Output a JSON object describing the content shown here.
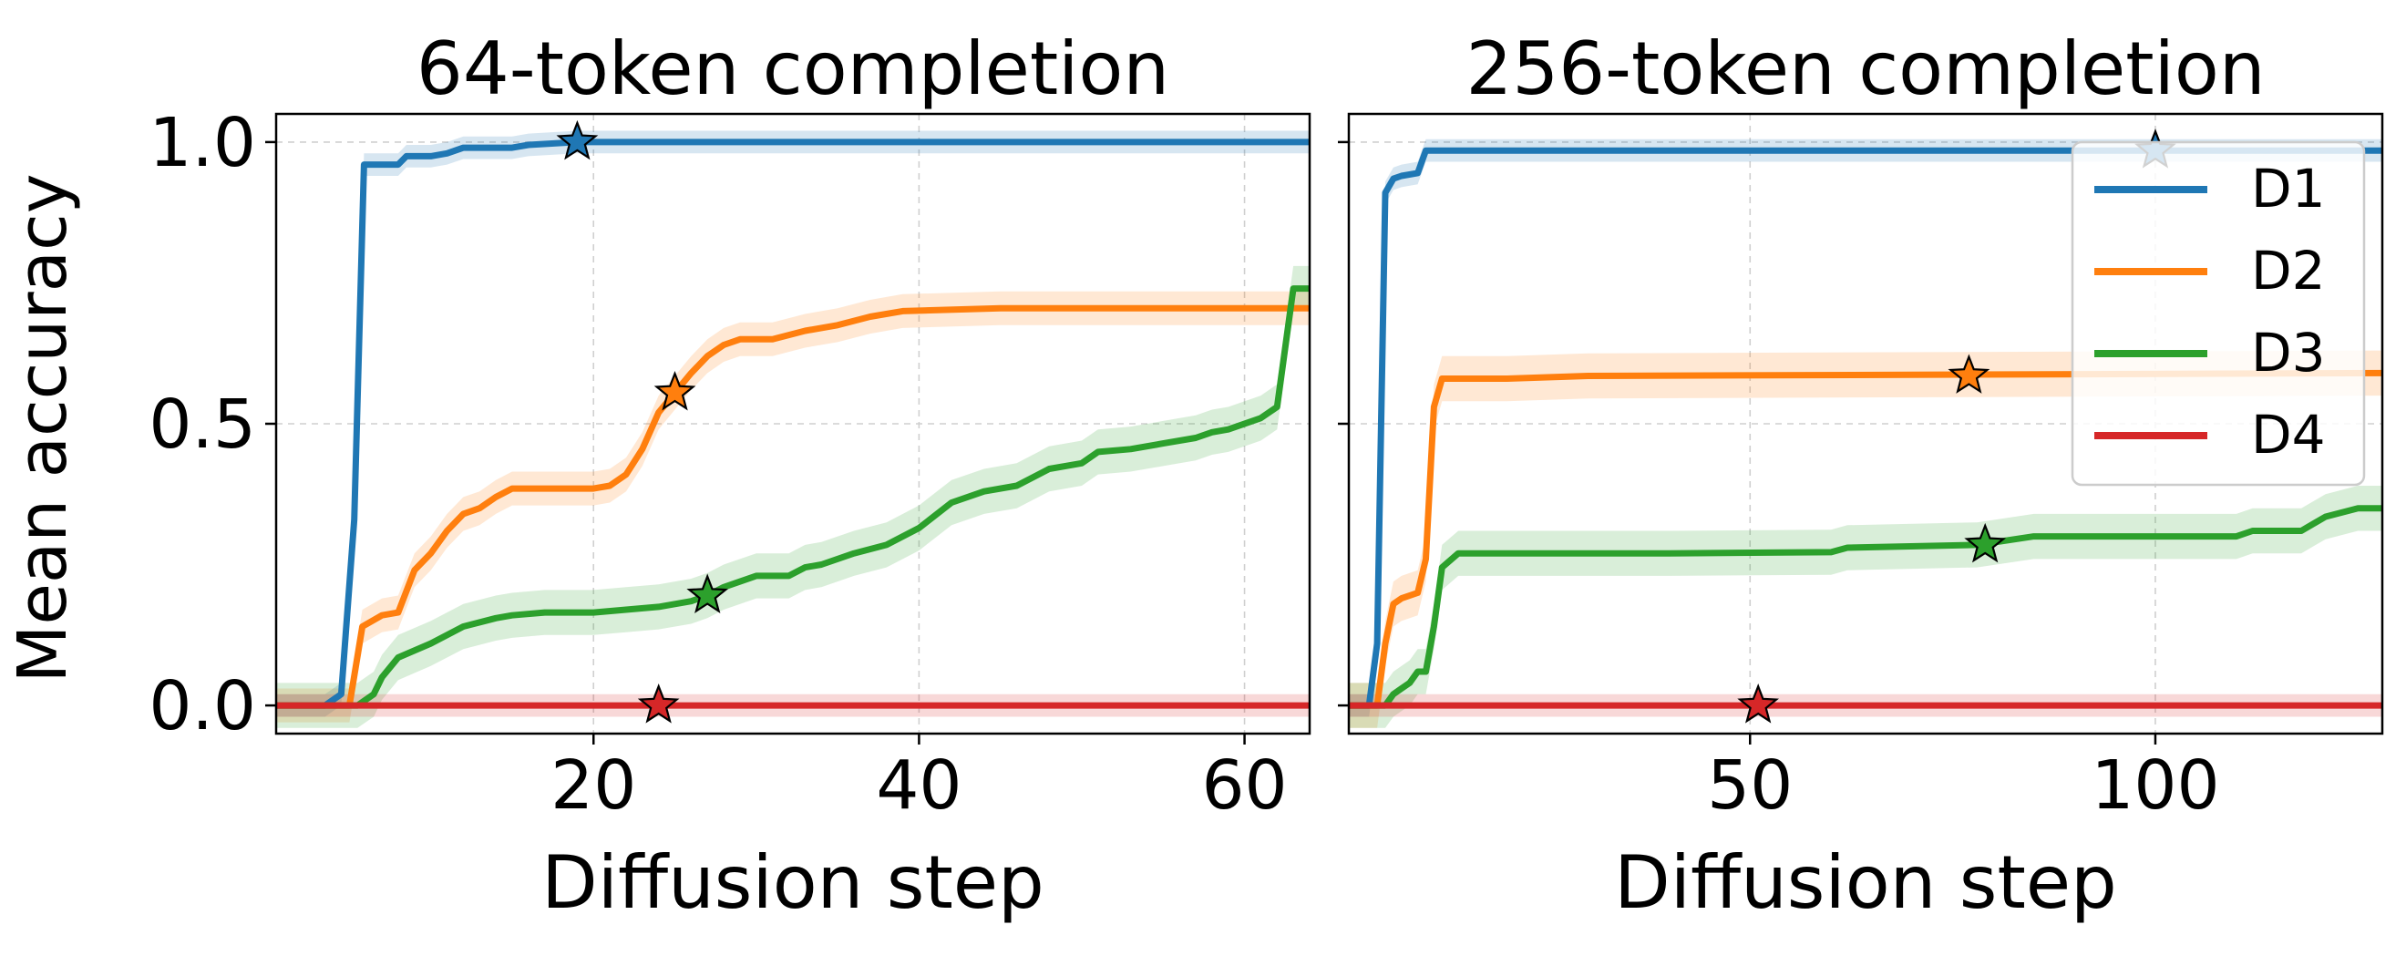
{
  "figure": {
    "ylabel": "Mean accuracy"
  },
  "legend": {
    "placement": "upper-right (right panel)",
    "entries": [
      {
        "label": "D1",
        "color": "#1f77b4"
      },
      {
        "label": "D2",
        "color": "#ff7f0e"
      },
      {
        "label": "D3",
        "color": "#2ca02c"
      },
      {
        "label": "D4",
        "color": "#d62728"
      }
    ]
  },
  "chart_data": [
    {
      "type": "line",
      "title": "64-token completion",
      "xlabel": "Diffusion step",
      "ylabel": "Mean accuracy",
      "xlim": [
        0.5,
        64
      ],
      "ylim": [
        -0.05,
        1.05
      ],
      "xticks": [
        20,
        40,
        60
      ],
      "yticks": [
        0.0,
        0.5,
        1.0
      ],
      "ytick_labels": [
        "0.0",
        "0.5",
        "1.0"
      ],
      "grid": true,
      "series": [
        {
          "name": "D1",
          "color": "#1f77b4",
          "band": 0.02,
          "points": [
            [
              0.5,
              0
            ],
            [
              3.5,
              0
            ],
            [
              4.5,
              0.02
            ],
            [
              5.3,
              0.33
            ],
            [
              5.9,
              0.96
            ],
            [
              8,
              0.96
            ],
            [
              8.5,
              0.975
            ],
            [
              10,
              0.975
            ],
            [
              11,
              0.98
            ],
            [
              12,
              0.99
            ],
            [
              15,
              0.99
            ],
            [
              16,
              0.995
            ],
            [
              19,
              1
            ],
            [
              64,
              1
            ]
          ],
          "star": [
            19,
            1.0
          ]
        },
        {
          "name": "D2",
          "color": "#ff7f0e",
          "band": 0.03,
          "points": [
            [
              0.5,
              0
            ],
            [
              5,
              0
            ],
            [
              5.8,
              0.14
            ],
            [
              7,
              0.16
            ],
            [
              8,
              0.165
            ],
            [
              9,
              0.24
            ],
            [
              10,
              0.27
            ],
            [
              11,
              0.31
            ],
            [
              12,
              0.34
            ],
            [
              13,
              0.35
            ],
            [
              14,
              0.37
            ],
            [
              15,
              0.385
            ],
            [
              20,
              0.385
            ],
            [
              21,
              0.39
            ],
            [
              22,
              0.41
            ],
            [
              23,
              0.455
            ],
            [
              24,
              0.52
            ],
            [
              25,
              0.555
            ],
            [
              26,
              0.59
            ],
            [
              27,
              0.62
            ],
            [
              28,
              0.64
            ],
            [
              29,
              0.65
            ],
            [
              31,
              0.65
            ],
            [
              33,
              0.665
            ],
            [
              35,
              0.675
            ],
            [
              37,
              0.69
            ],
            [
              39,
              0.7
            ],
            [
              45,
              0.705
            ],
            [
              64,
              0.705
            ]
          ],
          "star": [
            25,
            0.555
          ]
        },
        {
          "name": "D3",
          "color": "#2ca02c",
          "band": 0.04,
          "points": [
            [
              0.5,
              0
            ],
            [
              5.5,
              0
            ],
            [
              6.5,
              0.02
            ],
            [
              7,
              0.05
            ],
            [
              8,
              0.085
            ],
            [
              10,
              0.11
            ],
            [
              12,
              0.14
            ],
            [
              14,
              0.155
            ],
            [
              15,
              0.16
            ],
            [
              17,
              0.165
            ],
            [
              20,
              0.165
            ],
            [
              22,
              0.17
            ],
            [
              24,
              0.175
            ],
            [
              26,
              0.185
            ],
            [
              27,
              0.195
            ],
            [
              28,
              0.21
            ],
            [
              30,
              0.23
            ],
            [
              32,
              0.23
            ],
            [
              33,
              0.245
            ],
            [
              34,
              0.25
            ],
            [
              36,
              0.27
            ],
            [
              38,
              0.285
            ],
            [
              40,
              0.315
            ],
            [
              42,
              0.36
            ],
            [
              44,
              0.38
            ],
            [
              46,
              0.39
            ],
            [
              48,
              0.42
            ],
            [
              50,
              0.43
            ],
            [
              51,
              0.45
            ],
            [
              53,
              0.455
            ],
            [
              55,
              0.465
            ],
            [
              57,
              0.475
            ],
            [
              58,
              0.485
            ],
            [
              59,
              0.49
            ],
            [
              61,
              0.51
            ],
            [
              62,
              0.53
            ],
            [
              63,
              0.74
            ],
            [
              64,
              0.74
            ]
          ],
          "star": [
            27,
            0.195
          ]
        },
        {
          "name": "D4",
          "color": "#d62728",
          "band": 0.02,
          "points": [
            [
              0.5,
              0
            ],
            [
              64,
              0
            ]
          ],
          "star": [
            24,
            0.0
          ]
        }
      ]
    },
    {
      "type": "line",
      "title": "256-token completion",
      "xlabel": "Diffusion step",
      "ylabel": "",
      "xlim": [
        0.5,
        128
      ],
      "ylim": [
        -0.05,
        1.05
      ],
      "xticks": [
        50,
        100
      ],
      "yticks": [
        0.0,
        0.5,
        1.0
      ],
      "ytick_labels": [
        "",
        "",
        ""
      ],
      "grid": true,
      "series": [
        {
          "name": "D1",
          "color": "#1f77b4",
          "band": 0.02,
          "points": [
            [
              0.5,
              0
            ],
            [
              3,
              0
            ],
            [
              4,
              0.11
            ],
            [
              5,
              0.91
            ],
            [
              6,
              0.935
            ],
            [
              7,
              0.94
            ],
            [
              9,
              0.945
            ],
            [
              10,
              0.985
            ],
            [
              128,
              0.985
            ]
          ],
          "star": [
            100,
            0.985
          ]
        },
        {
          "name": "D2",
          "color": "#ff7f0e",
          "band": 0.04,
          "points": [
            [
              0.5,
              0
            ],
            [
              4,
              0
            ],
            [
              5,
              0.11
            ],
            [
              6,
              0.18
            ],
            [
              7,
              0.19
            ],
            [
              9,
              0.2
            ],
            [
              10,
              0.26
            ],
            [
              11,
              0.53
            ],
            [
              12,
              0.58
            ],
            [
              20,
              0.58
            ],
            [
              30,
              0.585
            ],
            [
              128,
              0.59
            ]
          ],
          "star": [
            77,
            0.585
          ]
        },
        {
          "name": "D3",
          "color": "#2ca02c",
          "band": 0.04,
          "points": [
            [
              0.5,
              0
            ],
            [
              5,
              0
            ],
            [
              6,
              0.02
            ],
            [
              7,
              0.03
            ],
            [
              8,
              0.04
            ],
            [
              9,
              0.06
            ],
            [
              10,
              0.06
            ],
            [
              11,
              0.14
            ],
            [
              12,
              0.245
            ],
            [
              14,
              0.27
            ],
            [
              40,
              0.27
            ],
            [
              60,
              0.272
            ],
            [
              62,
              0.28
            ],
            [
              78,
              0.285
            ],
            [
              85,
              0.3
            ],
            [
              110,
              0.3
            ],
            [
              112,
              0.31
            ],
            [
              118,
              0.31
            ],
            [
              121,
              0.335
            ],
            [
              125,
              0.35
            ],
            [
              128,
              0.35
            ]
          ],
          "star": [
            79,
            0.285
          ]
        },
        {
          "name": "D4",
          "color": "#d62728",
          "band": 0.02,
          "points": [
            [
              0.5,
              0
            ],
            [
              128,
              0
            ]
          ],
          "star": [
            51,
            0.0
          ]
        }
      ]
    }
  ]
}
